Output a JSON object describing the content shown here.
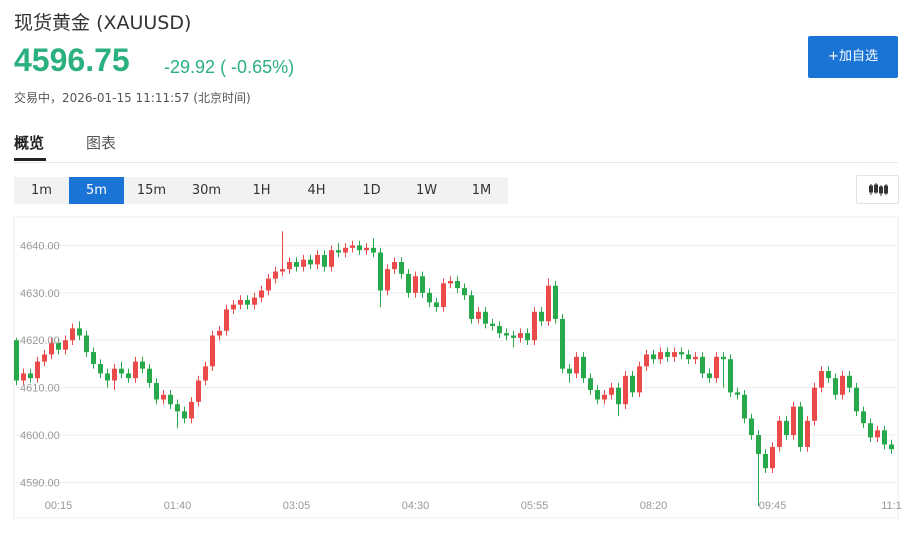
{
  "header": {
    "title": "现货黄金",
    "symbol": "(XAUUSD)",
    "price": "4596.75",
    "change": "-29.92",
    "change_pct": "( -0.65%)",
    "status": "交易中，2026-01-15 11:11:57 (北京时间)",
    "watch_button": "+加自选"
  },
  "tabs": [
    "概览",
    "图表"
  ],
  "intervals": [
    "1m",
    "5m",
    "15m",
    "30m",
    "1H",
    "4H",
    "1D",
    "1W",
    "1M"
  ],
  "chart_data": {
    "type": "candlestick",
    "up_color": "#eb4a4a",
    "down_color": "#27a84a",
    "grid": true,
    "ylim": [
      4582.5,
      4646
    ],
    "yticks": [
      {
        "value": 4590,
        "label": "4590.00"
      },
      {
        "value": 4600,
        "label": "4600.00"
      },
      {
        "value": 4610,
        "label": "4610.00"
      },
      {
        "value": 4620,
        "label": "4620.00"
      },
      {
        "value": 4630,
        "label": "4630.00"
      },
      {
        "value": 4640,
        "label": "4640.00"
      }
    ],
    "categories": [
      null,
      null,
      null,
      null,
      null,
      null,
      "00:15",
      null,
      null,
      null,
      null,
      null,
      null,
      null,
      null,
      null,
      null,
      null,
      null,
      null,
      null,
      null,
      null,
      "01:40",
      null,
      null,
      null,
      null,
      null,
      null,
      null,
      null,
      null,
      null,
      null,
      null,
      null,
      null,
      null,
      null,
      "03:05",
      null,
      null,
      null,
      null,
      null,
      null,
      null,
      null,
      null,
      null,
      null,
      null,
      null,
      null,
      null,
      null,
      "04:30",
      null,
      null,
      null,
      null,
      null,
      null,
      null,
      null,
      null,
      null,
      null,
      null,
      null,
      null,
      null,
      null,
      "05:55",
      null,
      null,
      null,
      null,
      null,
      null,
      null,
      null,
      null,
      null,
      null,
      null,
      null,
      null,
      null,
      null,
      "08:20",
      null,
      null,
      null,
      null,
      null,
      null,
      null,
      null,
      null,
      null,
      null,
      null,
      null,
      null,
      null,
      null,
      "09:45",
      null,
      null,
      null,
      null,
      null,
      null,
      null,
      null,
      null,
      null,
      null,
      null,
      null,
      null,
      null,
      null,
      "11:1"
    ],
    "open": [
      4620.0,
      4611.5,
      4613.0,
      4612.0,
      4615.5,
      4617.0,
      4619.5,
      4618.0,
      4620.0,
      4622.5,
      4621.0,
      4617.5,
      4615.0,
      4613.0,
      4611.5,
      4614.0,
      4613.0,
      4612.0,
      4615.5,
      4614.0,
      4611.0,
      4607.5,
      4608.5,
      4606.5,
      4605.0,
      4603.5,
      4607.0,
      4611.5,
      4614.5,
      4621.0,
      4622.0,
      4626.5,
      4627.5,
      4628.5,
      4627.5,
      4629.0,
      4630.5,
      4633.0,
      4634.5,
      4635.0,
      4636.5,
      4635.5,
      4637.0,
      4636.0,
      4638.0,
      4635.5,
      4639.0,
      4638.5,
      4639.5,
      4640.0,
      4639.0,
      4639.5,
      4638.5,
      4630.5,
      4635.0,
      4636.5,
      4634.0,
      4630.0,
      4633.5,
      4630.0,
      4628.0,
      4627.0,
      4632.0,
      4632.5,
      4631.0,
      4629.5,
      4624.5,
      4626.0,
      4623.5,
      4623.0,
      4621.5,
      4621.0,
      4620.5,
      4621.5,
      4620.0,
      4626.0,
      4624.0,
      4631.5,
      4624.5,
      4614.0,
      4613.0,
      4616.5,
      4612.0,
      4609.5,
      4607.5,
      4608.5,
      4610.0,
      4606.5,
      4612.5,
      4609.0,
      4614.5,
      4617.0,
      4616.0,
      4617.5,
      4616.5,
      4617.5,
      4617.0,
      4616.0,
      4616.5,
      4613.0,
      4612.0,
      4616.5,
      4616.0,
      4609.0,
      4608.5,
      4603.5,
      4600.0,
      4596.0,
      4593.0,
      4597.5,
      4603.0,
      4600.0,
      4606.0,
      4597.5,
      4603.0,
      4610.0,
      4613.5,
      4612.0,
      4608.5,
      4612.5,
      4610.0,
      4605.0,
      4602.5,
      4599.5,
      4601.0,
      4598.0
    ],
    "high": [
      4620.5,
      4614,
      4614,
      4616.5,
      4618,
      4620.5,
      4620.5,
      4621,
      4623.5,
      4624,
      4622,
      4618.5,
      4616,
      4614,
      4615,
      4615.5,
      4614,
      4616.5,
      4616.5,
      4615,
      4612,
      4609.5,
      4609.5,
      4607.5,
      4606,
      4608,
      4612.5,
      4615.5,
      4622,
      4623,
      4627.5,
      4628.5,
      4629.5,
      4629.5,
      4630,
      4631.5,
      4634,
      4635.5,
      4643,
      4637.5,
      4637.5,
      4638,
      4638,
      4639,
      4639,
      4640,
      4640.5,
      4640.5,
      4641,
      4641,
      4640.5,
      4641.5,
      4639.5,
      4636,
      4637.5,
      4637.5,
      4635,
      4634.5,
      4634.5,
      4631,
      4629,
      4633,
      4633.5,
      4633.5,
      4632,
      4630.5,
      4627,
      4627,
      4624.5,
      4624,
      4622.5,
      4622,
      4622.5,
      4622.5,
      4627,
      4627,
      4633,
      4632.5,
      4625.5,
      4615,
      4617.5,
      4617.5,
      4613,
      4610.5,
      4609.5,
      4611,
      4611,
      4613.5,
      4613.5,
      4615.5,
      4618,
      4618,
      4618.5,
      4618.5,
      4618.5,
      4618.5,
      4618,
      4617.5,
      4617.5,
      4614,
      4617.5,
      4617.5,
      4617,
      4610,
      4609.5,
      4604.5,
      4601,
      4597,
      4598.5,
      4604,
      4604,
      4607,
      4607,
      4604,
      4611,
      4614.5,
      4614.5,
      4613,
      4613.5,
      4613.5,
      4611,
      4606,
      4603.5,
      4602,
      4602,
      4599
    ],
    "low": [
      4610.5,
      4610.5,
      4611,
      4611,
      4614.5,
      4616,
      4617,
      4617,
      4619,
      4620,
      4616.5,
      4614,
      4612,
      4610,
      4609.5,
      4612,
      4611,
      4611,
      4613,
      4610,
      4606.5,
      4606.5,
      4605.5,
      4601.5,
      4602.5,
      4602.5,
      4606,
      4610.5,
      4613.5,
      4620,
      4621,
      4625.5,
      4626.5,
      4626.5,
      4626.5,
      4628,
      4629.5,
      4632,
      4633.5,
      4634,
      4634.5,
      4634.5,
      4635,
      4635,
      4634.5,
      4634.5,
      4637.5,
      4637.5,
      4638.5,
      4638,
      4638,
      4637.5,
      4627,
      4629.5,
      4634,
      4633,
      4629,
      4629,
      4629,
      4627,
      4626,
      4626,
      4631,
      4630,
      4628.5,
      4623.5,
      4623.5,
      4622.5,
      4622,
      4620.5,
      4620,
      4618.5,
      4619.5,
      4619,
      4619,
      4623,
      4623,
      4623.5,
      4613,
      4611,
      4612,
      4611,
      4608.5,
      4606.5,
      4606.5,
      4607.5,
      4604,
      4605.5,
      4608,
      4608,
      4613.5,
      4615,
      4615,
      4615.5,
      4615.5,
      4616,
      4615,
      4615,
      4612,
      4611,
      4611,
      4610,
      4608,
      4607.5,
      4602.5,
      4599,
      4585,
      4592,
      4592,
      4596.5,
      4599,
      4599,
      4596.5,
      4596.5,
      4602,
      4609,
      4611,
      4607.5,
      4607.5,
      4609,
      4604,
      4601.5,
      4598.5,
      4598.5,
      4597,
      4596
    ],
    "close": [
      4611.5,
      4613.0,
      4612.0,
      4615.5,
      4617.0,
      4619.5,
      4618.0,
      4620.0,
      4622.5,
      4621.0,
      4617.5,
      4615.0,
      4613.0,
      4611.5,
      4614.0,
      4613.0,
      4612.0,
      4615.5,
      4614.0,
      4611.0,
      4607.5,
      4608.5,
      4606.5,
      4605.0,
      4603.5,
      4607.0,
      4611.5,
      4614.5,
      4621.0,
      4622.0,
      4626.5,
      4627.5,
      4628.5,
      4627.5,
      4629.0,
      4630.5,
      4633.0,
      4634.5,
      4635.0,
      4636.5,
      4635.5,
      4637.0,
      4636.0,
      4638.0,
      4635.5,
      4639.0,
      4638.5,
      4639.5,
      4640.0,
      4639.0,
      4639.5,
      4638.5,
      4630.5,
      4635.0,
      4636.5,
      4634.0,
      4630.0,
      4633.5,
      4630.0,
      4628.0,
      4627.0,
      4632.0,
      4632.5,
      4631.0,
      4629.5,
      4624.5,
      4626.0,
      4623.5,
      4623.0,
      4621.5,
      4621.0,
      4620.5,
      4621.5,
      4620.0,
      4626.0,
      4624.0,
      4631.5,
      4624.5,
      4614.0,
      4613.0,
      4616.5,
      4612.0,
      4609.5,
      4607.5,
      4608.5,
      4610.0,
      4606.5,
      4612.5,
      4609.0,
      4614.5,
      4617.0,
      4616.0,
      4617.5,
      4616.5,
      4617.5,
      4617.0,
      4616.0,
      4616.5,
      4613.0,
      4612.0,
      4616.5,
      4616.0,
      4609.0,
      4608.5,
      4603.5,
      4600.0,
      4596.0,
      4593.0,
      4597.5,
      4603.0,
      4600.0,
      4606.0,
      4597.5,
      4603.0,
      4610.0,
      4613.5,
      4612.0,
      4608.5,
      4612.5,
      4610.0,
      4605.0,
      4602.5,
      4599.5,
      4601.0,
      4598.0,
      4597.0
    ]
  }
}
